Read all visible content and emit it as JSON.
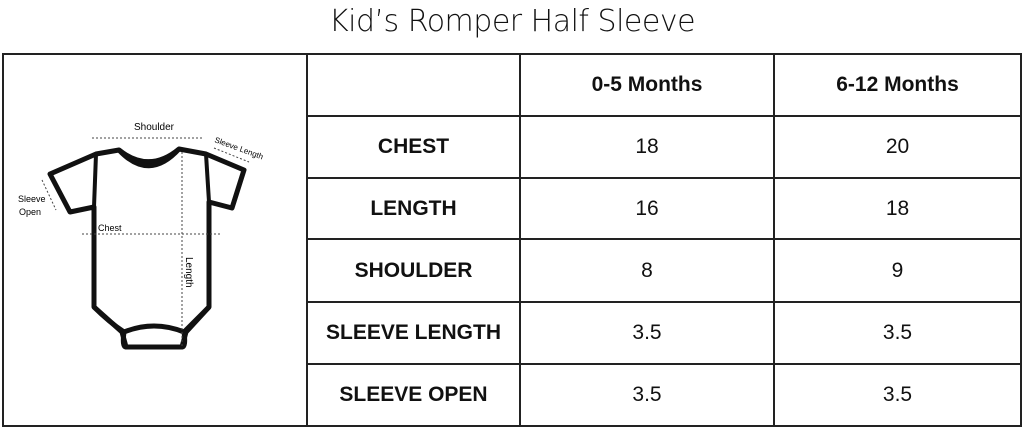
{
  "title": "Kid’s Romper Half Sleeve",
  "diagram": {
    "shoulder": "Shoulder",
    "sleeve_length": "Sleeve Length",
    "sleeve_open_1": "Sleeve",
    "sleeve_open_2": "Open",
    "chest": "Chest",
    "length": "Length"
  },
  "columns": [
    "0-5 Months",
    "6-12 Months"
  ],
  "rows": [
    {
      "label": "CHEST",
      "values": [
        "18",
        "20"
      ]
    },
    {
      "label": "LENGTH",
      "values": [
        "16",
        "18"
      ]
    },
    {
      "label": "SHOULDER",
      "values": [
        "8",
        "9"
      ]
    },
    {
      "label": "SLEEVE LENGTH",
      "values": [
        "3.5",
        "3.5"
      ]
    },
    {
      "label": "SLEEVE OPEN",
      "values": [
        "3.5",
        "3.5"
      ]
    }
  ]
}
